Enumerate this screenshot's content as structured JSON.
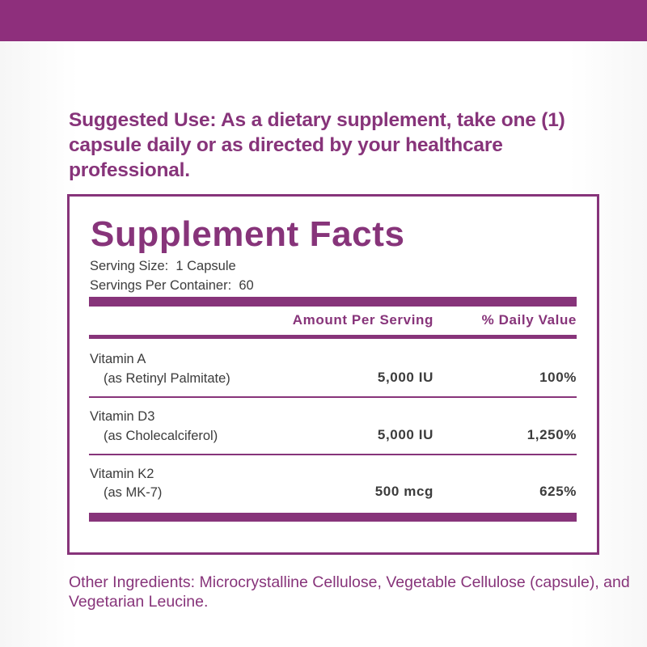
{
  "colors": {
    "brand_purple": "#87347a",
    "text_gray": "#3c3c3c",
    "top_band": "#8e2f7c"
  },
  "suggested_use": "Suggested Use: As a dietary supplement, take one (1) capsule daily or as directed by your healthcare professional.",
  "facts": {
    "title": "Supplement Facts",
    "serving_size": "Serving Size:  1 Capsule",
    "servings_per_container": "Servings Per Container:  60",
    "headers": {
      "amount": "Amount Per Serving",
      "daily_value": "% Daily Value"
    },
    "rows": [
      {
        "name": "Vitamin A",
        "source": "(as Retinyl Palmitate)",
        "amount": "5,000 IU",
        "daily_value": "100%"
      },
      {
        "name": "Vitamin D3",
        "source": "(as Cholecalciferol)",
        "amount": "5,000 IU",
        "daily_value": "1,250%"
      },
      {
        "name": "Vitamin K2",
        "source": "(as MK-7)",
        "amount": "500 mcg",
        "daily_value": "625%"
      }
    ]
  },
  "other_ingredients": "Other Ingredients:  Microcrystalline Cellulose, Vegetable Cellulose (capsule), and Vegetarian Leucine."
}
